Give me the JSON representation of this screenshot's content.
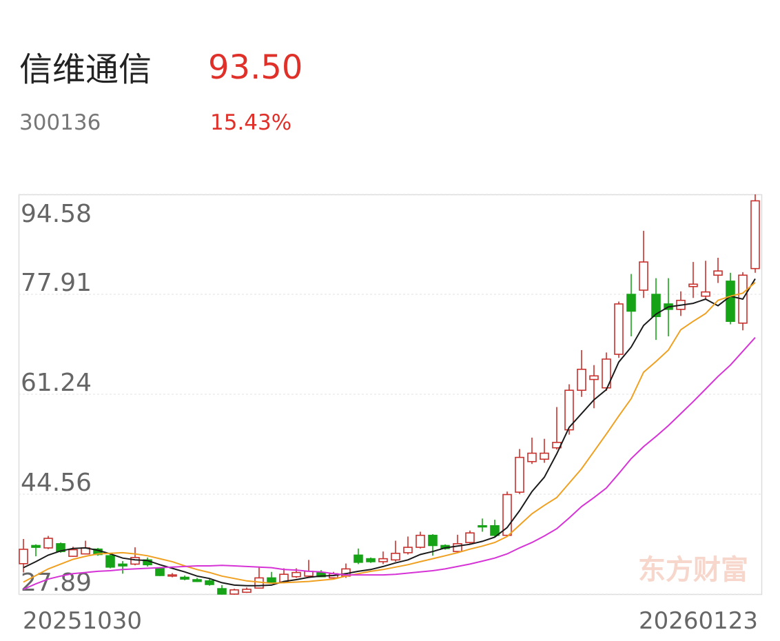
{
  "header": {
    "name": "信维通信",
    "price": "93.50",
    "code": "300136",
    "change": "15.43%"
  },
  "chart_data": {
    "type": "candlestick",
    "watermark": "东方财富",
    "categories": [
      "20251030",
      null,
      null,
      null,
      null,
      null,
      null,
      null,
      null,
      null,
      null,
      null,
      null,
      null,
      null,
      null,
      null,
      null,
      null,
      null,
      null,
      null,
      null,
      null,
      null,
      null,
      null,
      null,
      null,
      null,
      null,
      null,
      null,
      null,
      null,
      null,
      null,
      null,
      null,
      null,
      null,
      null,
      null,
      null,
      null,
      null,
      null,
      null,
      null,
      null,
      null,
      null,
      null,
      null,
      null,
      null,
      null,
      null,
      null,
      "20260123"
    ],
    "open": [
      32.97,
      36.0,
      35.6,
      36.3,
      34.2,
      34.6,
      35.4,
      34.3,
      32.9,
      32.9,
      33.6,
      32.2,
      30.9,
      30.7,
      30.3,
      30.1,
      28.8,
      27.9,
      28.2,
      28.9,
      30.6,
      29.9,
      30.8,
      30.9,
      31.5,
      30.6,
      30.9,
      34.4,
      33.8,
      33.3,
      33.6,
      34.8,
      35.7,
      37.7,
      36.0,
      35.0,
      36.5,
      39.3,
      39.3,
      37.7,
      44.9,
      50.0,
      50.4,
      52.3,
      55.3,
      61.9,
      63.7,
      62.3,
      67.9,
      77.9,
      78.6,
      77.9,
      76.3,
      75.4,
      79.2,
      77.6,
      81.1,
      80.1,
      73.1,
      82.2
    ],
    "high": [
      37.09,
      36.2,
      37.6,
      36.5,
      35.8,
      36.8,
      35.6,
      34.5,
      33.4,
      35.7,
      34.0,
      32.4,
      31.4,
      31.0,
      30.6,
      30.4,
      29.4,
      28.8,
      29.0,
      32.5,
      31.6,
      32.2,
      32.2,
      33.6,
      31.9,
      31.6,
      33.0,
      35.5,
      34.0,
      35.0,
      36.8,
      37.5,
      38.3,
      37.9,
      36.2,
      37.8,
      38.5,
      40.5,
      40.3,
      45.0,
      52.1,
      54.0,
      53.8,
      59.1,
      62.9,
      68.6,
      66.1,
      68.2,
      76.7,
      81.3,
      88.5,
      80.6,
      80.6,
      78.4,
      83.3,
      83.5,
      84.0,
      81.5,
      81.6,
      94.58
    ],
    "low": [
      31.5,
      34.2,
      35.4,
      34.8,
      34.1,
      34.5,
      34.3,
      32.2,
      31.3,
      32.7,
      32.5,
      30.9,
      30.7,
      30.2,
      29.9,
      29.3,
      27.8,
      27.8,
      28.1,
      28.8,
      29.8,
      29.7,
      30.6,
      30.8,
      30.7,
      30.4,
      30.6,
      32.9,
      33.1,
      32.9,
      33.3,
      34.5,
      35.5,
      34.3,
      35.3,
      34.8,
      36.3,
      38.3,
      37.5,
      37.5,
      44.6,
      49.6,
      49.8,
      52.0,
      54.5,
      60.8,
      58.9,
      61.8,
      67.3,
      70.9,
      77.3,
      70.3,
      70.9,
      74.3,
      77.3,
      77.0,
      79.8,
      72.9,
      71.9,
      81.5
    ],
    "close": [
      35.37,
      35.7,
      37.2,
      35.0,
      35.3,
      35.6,
      34.5,
      32.4,
      32.6,
      34.0,
      32.8,
      31.0,
      31.1,
      30.4,
      30.0,
      29.5,
      27.9,
      28.6,
      28.7,
      30.6,
      29.9,
      31.2,
      31.5,
      31.7,
      30.8,
      31.3,
      32.1,
      33.2,
      33.3,
      33.8,
      34.7,
      35.7,
      37.7,
      36.0,
      35.5,
      36.3,
      38.1,
      39.1,
      37.7,
      44.5,
      50.7,
      51.4,
      51.4,
      53.2,
      61.9,
      65.4,
      64.3,
      67.1,
      76.3,
      75.1,
      83.3,
      74.2,
      75.4,
      76.9,
      79.6,
      78.3,
      81.8,
      73.4,
      81.1,
      93.5
    ],
    "up_color": "#c9302c",
    "down_color": "#17a317",
    "series": [
      {
        "color": "#1a1a1a",
        "values": [
          32.3,
          33.3,
          34.4,
          35.1,
          35.5,
          35.6,
          35.2,
          34.6,
          33.9,
          33.6,
          33.5,
          32.8,
          32.2,
          31.6,
          30.9,
          30.5,
          29.8,
          29.4,
          29.3,
          29.3,
          29.4,
          30.0,
          30.3,
          30.7,
          30.9,
          31.0,
          31.3,
          31.7,
          32.0,
          32.5,
          33.1,
          33.6,
          34.5,
          35.0,
          35.6,
          35.9,
          36.2,
          36.7,
          37.4,
          39.0,
          41.8,
          45.0,
          47.4,
          51.3,
          55.7,
          58.0,
          60.3,
          62.0,
          66.6,
          69.1,
          72.7,
          74.6,
          75.8,
          76.1,
          76.4,
          77.1,
          76.0,
          77.6,
          77.1,
          80.5
        ]
      },
      {
        "color": "#f0a020",
        "values": [
          29.9,
          31.0,
          32.1,
          32.9,
          33.7,
          34.2,
          34.6,
          34.7,
          34.8,
          34.6,
          34.3,
          33.8,
          33.3,
          32.6,
          32.0,
          31.5,
          30.9,
          30.5,
          30.1,
          29.9,
          29.7,
          29.8,
          29.9,
          30.0,
          30.2,
          30.4,
          30.9,
          31.3,
          31.7,
          32.0,
          32.4,
          32.8,
          33.3,
          33.8,
          34.3,
          34.8,
          35.4,
          35.9,
          36.5,
          37.5,
          39.4,
          41.3,
          42.7,
          44.0,
          46.4,
          48.8,
          51.7,
          54.6,
          57.6,
          60.5,
          64.9,
          66.7,
          68.6,
          72.0,
          73.4,
          74.7,
          76.9,
          77.6,
          78.1,
          79.9
        ]
      },
      {
        "color": "#d633d6",
        "values": [
          28.7,
          29.6,
          30.4,
          30.9,
          31.3,
          31.5,
          31.7,
          31.8,
          32.0,
          32.1,
          32.2,
          32.3,
          32.4,
          32.5,
          32.6,
          32.6,
          32.7,
          32.6,
          32.5,
          32.4,
          32.3,
          32.0,
          31.9,
          31.7,
          31.6,
          31.3,
          31.1,
          31.1,
          31.1,
          31.1,
          31.2,
          31.4,
          31.6,
          31.8,
          32.1,
          32.5,
          32.9,
          33.4,
          33.9,
          34.6,
          35.6,
          36.5,
          37.6,
          38.8,
          40.6,
          42.5,
          44.0,
          45.6,
          48.0,
          50.5,
          52.5,
          54.2,
          56.0,
          58.0,
          60.0,
          62.1,
          64.2,
          66.1,
          68.4,
          70.7
        ]
      }
    ],
    "ylim": [
      27.89,
      94.58
    ],
    "yticks": [
      94.58,
      77.91,
      61.24,
      44.56,
      27.89
    ],
    "grid": true
  }
}
